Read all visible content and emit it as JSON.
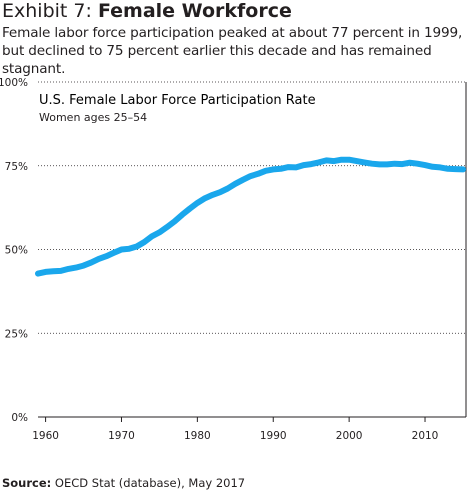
{
  "exhibit": {
    "lead": "Exhibit 7: ",
    "title": "Female Workforce",
    "subtitle": "Female labor force participation peaked at about 77 percent in 1999, but declined to 75 percent earlier this decade and has remained stagnant."
  },
  "source": {
    "label": "Source:",
    "text": " OECD Stat (database), May 2017"
  },
  "colors": {
    "line": "#1aa7ec",
    "axis": "#231f20",
    "grid": "#231f20"
  },
  "chart_data": {
    "type": "line",
    "title": "U.S. Female Labor Force Participation Rate",
    "subtitle": "Women ages 25–54",
    "xlabel": "",
    "ylabel": "",
    "xlim": [
      1959,
      2015.4
    ],
    "ylim": [
      0,
      100
    ],
    "grid": "horizontal",
    "x_ticks": [
      1960,
      1970,
      1980,
      1990,
      2000,
      2010
    ],
    "y_ticks": [
      0,
      25,
      50,
      75,
      100
    ],
    "y_tick_labels": [
      "0%",
      "25%",
      "50%",
      "75%",
      "100%"
    ],
    "series": [
      {
        "x": [
          1959,
          1960,
          1961,
          1962,
          1963,
          1964,
          1965,
          1966,
          1967,
          1968,
          1969,
          1970,
          1971,
          1972,
          1973,
          1974,
          1975,
          1976,
          1977,
          1978,
          1979,
          1980,
          1981,
          1982,
          1983,
          1984,
          1985,
          1986,
          1987,
          1988,
          1989,
          1990,
          1991,
          1992,
          1993,
          1994,
          1995,
          1996,
          1997,
          1998,
          1999,
          2000,
          2001,
          2002,
          2003,
          2004,
          2005,
          2006,
          2007,
          2008,
          2009,
          2010,
          2011,
          2012,
          2013,
          2014,
          2015
        ],
        "values": [
          42.8,
          43.3,
          43.5,
          43.6,
          44.2,
          44.6,
          45.2,
          46.1,
          47.2,
          48.0,
          49.0,
          50.0,
          50.2,
          50.9,
          52.2,
          53.9,
          55.1,
          56.7,
          58.4,
          60.4,
          62.2,
          63.9,
          65.3,
          66.3,
          67.1,
          68.2,
          69.6,
          70.8,
          71.9,
          72.6,
          73.5,
          73.9,
          74.1,
          74.6,
          74.5,
          75.2,
          75.5,
          76.0,
          76.6,
          76.4,
          76.8,
          76.8,
          76.4,
          76.0,
          75.6,
          75.4,
          75.4,
          75.6,
          75.5,
          75.9,
          75.6,
          75.2,
          74.7,
          74.5,
          74.1,
          74.0,
          73.9
        ]
      }
    ]
  }
}
